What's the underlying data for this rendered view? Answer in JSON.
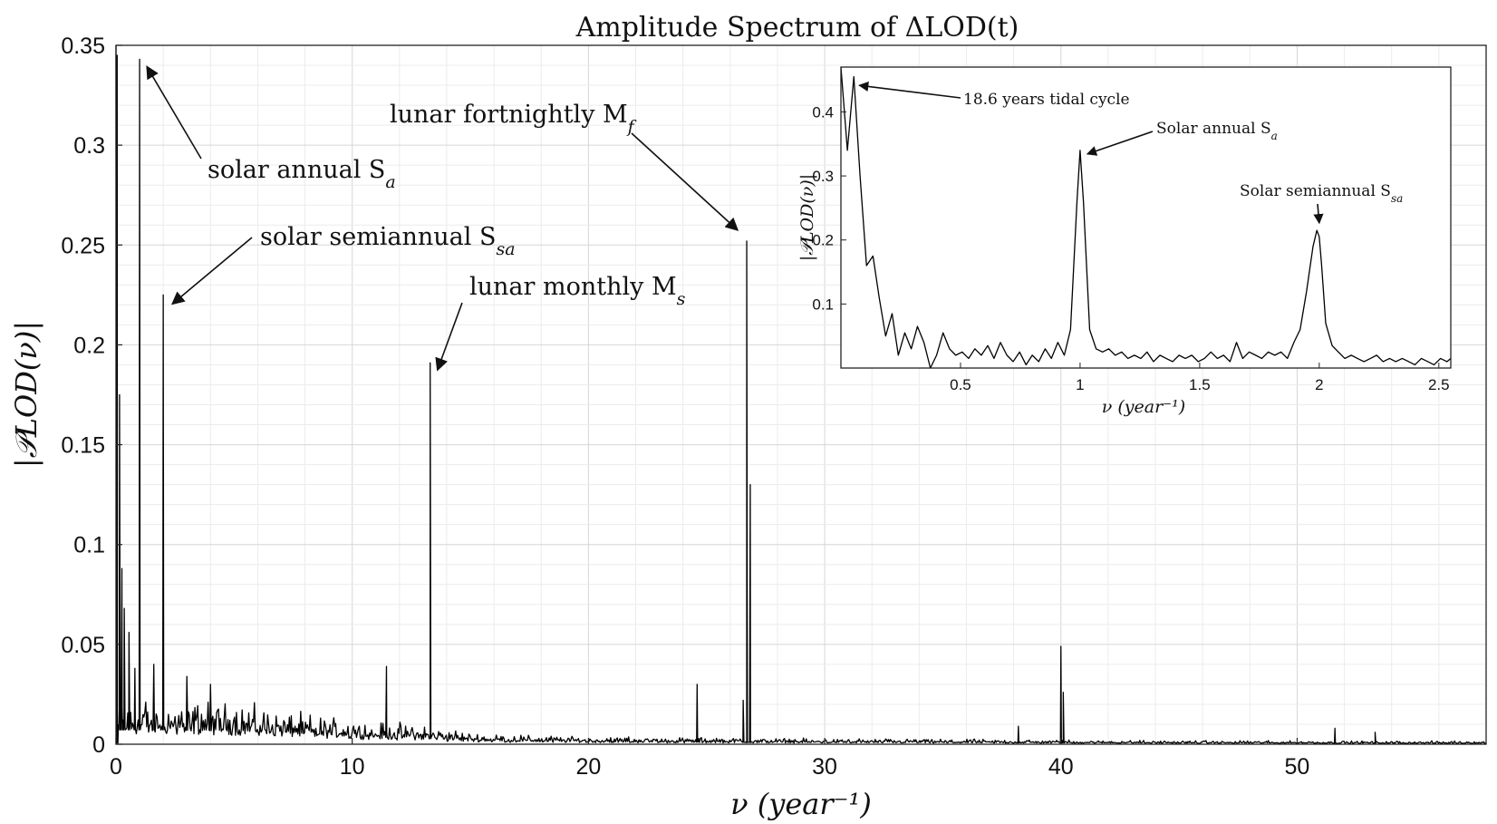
{
  "chart_data": [
    {
      "type": "line",
      "title": "Amplitude Spectrum of ΔLOD(t)",
      "xlabel": "ν (year⁻¹)",
      "ylabel": "|𝒫LOD(ν)|",
      "xlim": [
        0,
        58
      ],
      "ylim": [
        0,
        0.35
      ],
      "xticks": [
        "0",
        "10",
        "20",
        "30",
        "40",
        "50"
      ],
      "yticks": [
        "0",
        "0.05",
        "0.1",
        "0.15",
        "0.2",
        "0.25",
        "0.3",
        "0.35"
      ],
      "grid": true,
      "baseline_noise": [
        [
          0.1,
          0.012
        ],
        [
          2,
          0.012
        ],
        [
          5,
          0.011
        ],
        [
          8,
          0.008
        ],
        [
          11,
          0.006
        ],
        [
          13,
          0.005
        ],
        [
          15,
          0.003
        ],
        [
          20,
          0.002
        ],
        [
          30,
          0.0015
        ],
        [
          45,
          0.001
        ],
        [
          58,
          0.0008
        ]
      ],
      "peaks": [
        {
          "x": 0.05,
          "y": 0.345
        },
        {
          "x": 0.15,
          "y": 0.175
        },
        {
          "x": 0.25,
          "y": 0.088
        },
        {
          "x": 0.35,
          "y": 0.068
        },
        {
          "x": 0.55,
          "y": 0.056
        },
        {
          "x": 0.8,
          "y": 0.038
        },
        {
          "x": 1.0,
          "y": 0.343
        },
        {
          "x": 1.6,
          "y": 0.04
        },
        {
          "x": 2.0,
          "y": 0.225
        },
        {
          "x": 3.0,
          "y": 0.034
        },
        {
          "x": 4.0,
          "y": 0.03
        },
        {
          "x": 11.45,
          "y": 0.039
        },
        {
          "x": 13.3,
          "y": 0.191
        },
        {
          "x": 24.6,
          "y": 0.03
        },
        {
          "x": 26.55,
          "y": 0.022
        },
        {
          "x": 26.7,
          "y": 0.252
        },
        {
          "x": 26.85,
          "y": 0.13
        },
        {
          "x": 38.2,
          "y": 0.009
        },
        {
          "x": 40.0,
          "y": 0.049
        },
        {
          "x": 40.1,
          "y": 0.026
        },
        {
          "x": 51.6,
          "y": 0.008
        },
        {
          "x": 53.3,
          "y": 0.006
        }
      ],
      "annotations": [
        {
          "text": "solar annual S",
          "sub": "a",
          "x": 1.0,
          "y": 0.343
        },
        {
          "text": "solar semiannual S",
          "sub": "sa",
          "x": 2.0,
          "y": 0.225
        },
        {
          "text": "lunar monthly M",
          "sub": "s",
          "x": 13.3,
          "y": 0.191
        },
        {
          "text": "lunar fortnightly M",
          "sub": "f",
          "x": 26.7,
          "y": 0.252
        }
      ]
    },
    {
      "type": "line",
      "title": "",
      "xlabel": "ν (year⁻¹)",
      "ylabel": "|𝒫LOD(ν)|",
      "xlim": [
        0,
        2.55
      ],
      "ylim": [
        0,
        0.47
      ],
      "xticks": [
        "0.5",
        "1",
        "1.5",
        "2",
        "2.5"
      ],
      "yticks": [
        "0.1",
        "0.2",
        "0.3",
        "0.4"
      ],
      "grid": false,
      "x": [
        0.0,
        0.027,
        0.054,
        0.08,
        0.107,
        0.134,
        0.16,
        0.187,
        0.214,
        0.24,
        0.267,
        0.294,
        0.32,
        0.347,
        0.374,
        0.4,
        0.427,
        0.454,
        0.48,
        0.507,
        0.534,
        0.56,
        0.587,
        0.614,
        0.64,
        0.667,
        0.694,
        0.72,
        0.747,
        0.774,
        0.8,
        0.827,
        0.854,
        0.88,
        0.907,
        0.934,
        0.96,
        0.987,
        1.0,
        1.014,
        1.04,
        1.067,
        1.094,
        1.12,
        1.147,
        1.174,
        1.2,
        1.227,
        1.254,
        1.28,
        1.307,
        1.334,
        1.36,
        1.387,
        1.414,
        1.44,
        1.467,
        1.494,
        1.52,
        1.547,
        1.574,
        1.6,
        1.627,
        1.654,
        1.68,
        1.707,
        1.734,
        1.76,
        1.787,
        1.814,
        1.84,
        1.867,
        1.894,
        1.92,
        1.947,
        1.974,
        1.99,
        2.0,
        2.01,
        2.027,
        2.054,
        2.08,
        2.107,
        2.134,
        2.16,
        2.187,
        2.214,
        2.24,
        2.267,
        2.294,
        2.32,
        2.347,
        2.374,
        2.4,
        2.427,
        2.454,
        2.48,
        2.507,
        2.534,
        2.55
      ],
      "y": [
        0.47,
        0.34,
        0.455,
        0.3,
        0.16,
        0.175,
        0.11,
        0.05,
        0.085,
        0.02,
        0.055,
        0.03,
        0.065,
        0.04,
        0.0,
        0.02,
        0.055,
        0.03,
        0.02,
        0.025,
        0.015,
        0.03,
        0.02,
        0.035,
        0.015,
        0.04,
        0.02,
        0.01,
        0.025,
        0.005,
        0.02,
        0.01,
        0.03,
        0.015,
        0.04,
        0.02,
        0.06,
        0.26,
        0.34,
        0.26,
        0.06,
        0.03,
        0.025,
        0.03,
        0.02,
        0.025,
        0.015,
        0.02,
        0.015,
        0.025,
        0.01,
        0.02,
        0.015,
        0.01,
        0.02,
        0.015,
        0.02,
        0.01,
        0.015,
        0.025,
        0.015,
        0.02,
        0.01,
        0.04,
        0.015,
        0.025,
        0.02,
        0.015,
        0.025,
        0.02,
        0.025,
        0.015,
        0.04,
        0.06,
        0.12,
        0.19,
        0.215,
        0.205,
        0.16,
        0.07,
        0.035,
        0.025,
        0.015,
        0.02,
        0.015,
        0.01,
        0.015,
        0.02,
        0.01,
        0.015,
        0.01,
        0.015,
        0.01,
        0.005,
        0.015,
        0.01,
        0.005,
        0.015,
        0.01,
        0.015
      ],
      "annotations": [
        {
          "text": "18.6 years tidal cycle",
          "sub": "",
          "x": 0.054,
          "y": 0.44
        },
        {
          "text": "Solar annual S",
          "sub": "a",
          "x": 1.0,
          "y": 0.34
        },
        {
          "text": "Solar semiannual S",
          "sub": "sa",
          "x": 2.0,
          "y": 0.215
        }
      ]
    }
  ]
}
